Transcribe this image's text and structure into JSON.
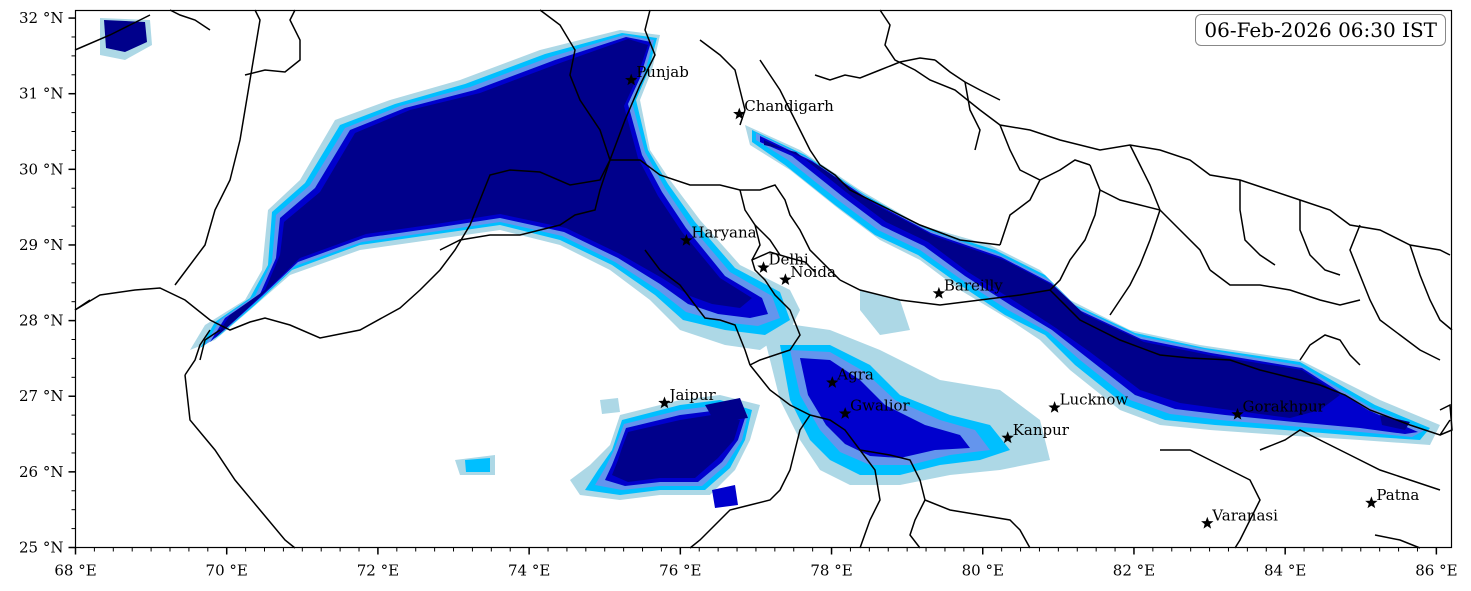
{
  "timestamp": "06-Feb-2026 06:30 IST",
  "axes": {
    "lon_range": [
      68,
      86.2
    ],
    "lat_range": [
      25,
      32.1
    ],
    "x_ticks": [
      {
        "value": 68,
        "label": "68 °E"
      },
      {
        "value": 70,
        "label": "70 °E"
      },
      {
        "value": 72,
        "label": "72 °E"
      },
      {
        "value": 74,
        "label": "74 °E"
      },
      {
        "value": 76,
        "label": "76 °E"
      },
      {
        "value": 78,
        "label": "78 °E"
      },
      {
        "value": 80,
        "label": "80 °E"
      },
      {
        "value": 82,
        "label": "82 °E"
      },
      {
        "value": 84,
        "label": "84 °E"
      },
      {
        "value": 86,
        "label": "86 °E"
      }
    ],
    "y_ticks": [
      {
        "value": 25,
        "label": "25 °N"
      },
      {
        "value": 26,
        "label": "26 °N"
      },
      {
        "value": 27,
        "label": "27 °N"
      },
      {
        "value": 28,
        "label": "28 °N"
      },
      {
        "value": 29,
        "label": "29 °N"
      },
      {
        "value": 30,
        "label": "30 °N"
      },
      {
        "value": 31,
        "label": "31 °N"
      },
      {
        "value": 32,
        "label": "32 °N"
      }
    ]
  },
  "cities": [
    {
      "name": "Punjab",
      "lon": 75.35,
      "lat": 31.18
    },
    {
      "name": "Chandigarh",
      "lon": 76.78,
      "lat": 30.73
    },
    {
      "name": "Haryana",
      "lon": 76.08,
      "lat": 29.06
    },
    {
      "name": "Delhi",
      "lon": 77.1,
      "lat": 28.7
    },
    {
      "name": "Noida",
      "lon": 77.39,
      "lat": 28.54
    },
    {
      "name": "Bareilly",
      "lon": 79.42,
      "lat": 28.36
    },
    {
      "name": "Agra",
      "lon": 78.01,
      "lat": 27.18
    },
    {
      "name": "Jaipur",
      "lon": 75.79,
      "lat": 26.91
    },
    {
      "name": "Gwalior",
      "lon": 78.18,
      "lat": 26.77
    },
    {
      "name": "Lucknow",
      "lon": 80.95,
      "lat": 26.85
    },
    {
      "name": "Kanpur",
      "lon": 80.33,
      "lat": 26.45
    },
    {
      "name": "Gorakhpur",
      "lon": 83.37,
      "lat": 26.76
    },
    {
      "name": "Varanasi",
      "lon": 82.97,
      "lat": 25.32
    },
    {
      "name": "Patna",
      "lon": 85.14,
      "lat": 25.59
    }
  ],
  "colors": {
    "level1": "#add8e6",
    "level2": "#00bfff",
    "level3": "#6495ed",
    "level4": "#0000cd",
    "level5": "#00008b",
    "border": "#000000"
  }
}
